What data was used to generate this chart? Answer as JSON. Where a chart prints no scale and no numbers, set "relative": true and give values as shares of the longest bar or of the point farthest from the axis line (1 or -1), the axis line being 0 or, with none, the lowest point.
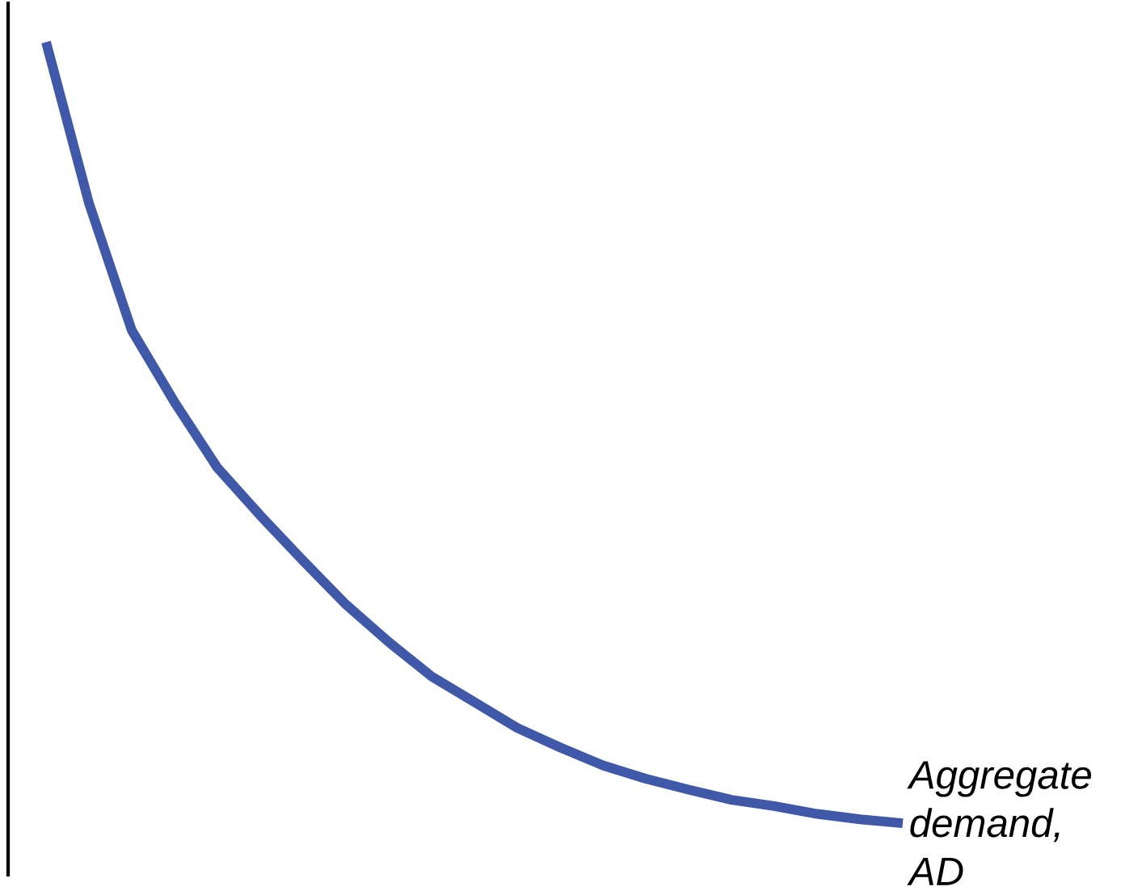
{
  "chart_data": {
    "type": "line",
    "relative": true,
    "categories": [
      null,
      null,
      null,
      null,
      null,
      null,
      null,
      null,
      null,
      null,
      null,
      null,
      null,
      null,
      null,
      null,
      null,
      null,
      null,
      null,
      null
    ],
    "series": [
      {
        "name": "Aggregate demand, AD",
        "color": "#3f59a8",
        "values": [
          1.0,
          0.794,
          0.631,
          0.539,
          0.455,
          0.394,
          0.336,
          0.28,
          0.232,
          0.188,
          0.155,
          0.122,
          0.097,
          0.074,
          0.057,
          0.043,
          0.03,
          0.022,
          0.012,
          0.005,
          0.0
        ]
      }
    ]
  }
}
